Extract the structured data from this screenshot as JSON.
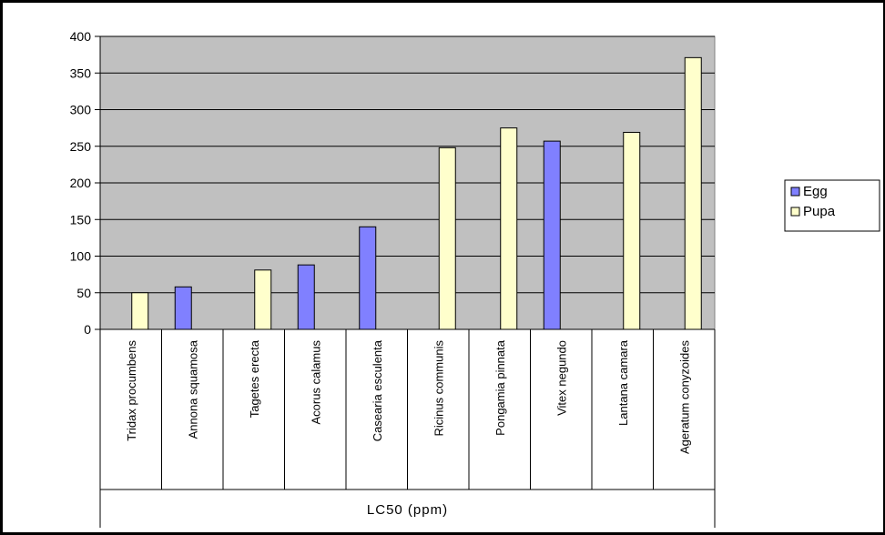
{
  "chart_data": {
    "type": "bar",
    "categories": [
      "Tridax procumbens",
      "Annona squamosa",
      "Tagetes erecta",
      "Acorus calamus",
      "Casearia esculenta",
      "Ricinus communis",
      "Pongamia pinnata",
      "Vitex negundo",
      "Lantana camara",
      "Ageratum conyzoides"
    ],
    "series": [
      {
        "name": "Egg",
        "values": [
          null,
          58,
          null,
          88,
          140,
          null,
          null,
          257,
          null,
          null
        ],
        "color": "#8080ff"
      },
      {
        "name": "Pupa",
        "values": [
          50,
          null,
          81,
          null,
          null,
          248,
          275,
          null,
          269,
          371
        ],
        "color": "#ffffcc"
      }
    ],
    "xlabel": "LC50 (ppm)",
    "ylim": [
      0,
      400
    ],
    "yticks": [
      0,
      50,
      100,
      150,
      200,
      250,
      300,
      350,
      400
    ],
    "plot_background": "#c0c0c0",
    "grid": true,
    "legend": "right"
  }
}
